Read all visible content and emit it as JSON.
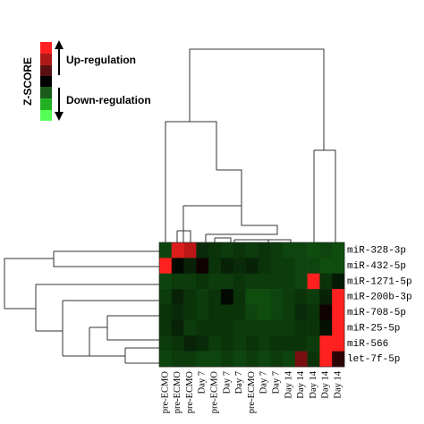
{
  "chart_data": {
    "type": "heatmap",
    "legend_title": "Z-SCORE",
    "legend_labels": [
      "Up-regulation",
      "Down-regulation"
    ],
    "x": [
      "pre-ECMO",
      "pre-ECMO",
      "pre-ECMO",
      "Day 7",
      "pre-ECMO",
      "Day 7",
      "Day 7",
      "pre-ECMO",
      "Day 7",
      "Day 7",
      "Day 14",
      "Day 14",
      "Day 14",
      "Day 14",
      "Day 14"
    ],
    "y": [
      "miR-328-3p",
      "miR-432-5p",
      "miR-1271-5p",
      "miR-200b-3p",
      "miR-708-5p",
      "miR-25-5p",
      "miR-566",
      "let-7f-5p"
    ],
    "zlim": [
      -3,
      3
    ],
    "color_low": "#33ff33",
    "color_mid": "#000000",
    "color_high": "#ff2020",
    "values": [
      [
        -0.8,
        2.6,
        2.2,
        -0.5,
        -0.6,
        -0.7,
        -0.6,
        -0.7,
        -0.6,
        -0.7,
        -0.8,
        -0.8,
        -0.9,
        -0.8,
        -0.9
      ],
      [
        3,
        -0.1,
        -0.4,
        0.2,
        -0.6,
        -0.4,
        -0.5,
        -0.4,
        -0.6,
        -0.7,
        -0.7,
        -0.8,
        -0.8,
        -0.9,
        -0.9
      ],
      [
        -0.8,
        -0.7,
        -0.7,
        -0.6,
        -0.7,
        -0.7,
        -0.6,
        -0.7,
        -0.7,
        -0.7,
        -0.7,
        -0.8,
        3,
        -0.6,
        -0.3
      ],
      [
        -0.7,
        -0.4,
        -0.6,
        -0.7,
        -0.6,
        -0.1,
        -0.6,
        -0.9,
        -0.9,
        -0.8,
        -0.7,
        -0.6,
        -0.7,
        -0.4,
        3
      ],
      [
        -0.6,
        -0.5,
        -0.6,
        -0.7,
        -0.6,
        -0.6,
        -0.6,
        -0.8,
        -0.9,
        -0.8,
        -0.7,
        -0.5,
        -0.6,
        0.2,
        3
      ],
      [
        -0.6,
        -0.4,
        -0.7,
        -0.6,
        -0.6,
        -0.6,
        -0.7,
        -0.7,
        -0.7,
        -0.7,
        -0.7,
        -0.6,
        -0.6,
        -0.2,
        3
      ],
      [
        -0.7,
        -0.6,
        -0.4,
        -0.5,
        -0.7,
        -0.6,
        -0.7,
        -0.6,
        -0.7,
        -0.6,
        -0.6,
        -0.6,
        -0.7,
        3,
        3
      ],
      [
        -0.8,
        -0.7,
        -0.7,
        -0.8,
        -0.8,
        -0.7,
        -0.8,
        -0.7,
        -0.8,
        -0.7,
        -0.8,
        1.4,
        -0.6,
        3,
        0.5
      ]
    ]
  }
}
